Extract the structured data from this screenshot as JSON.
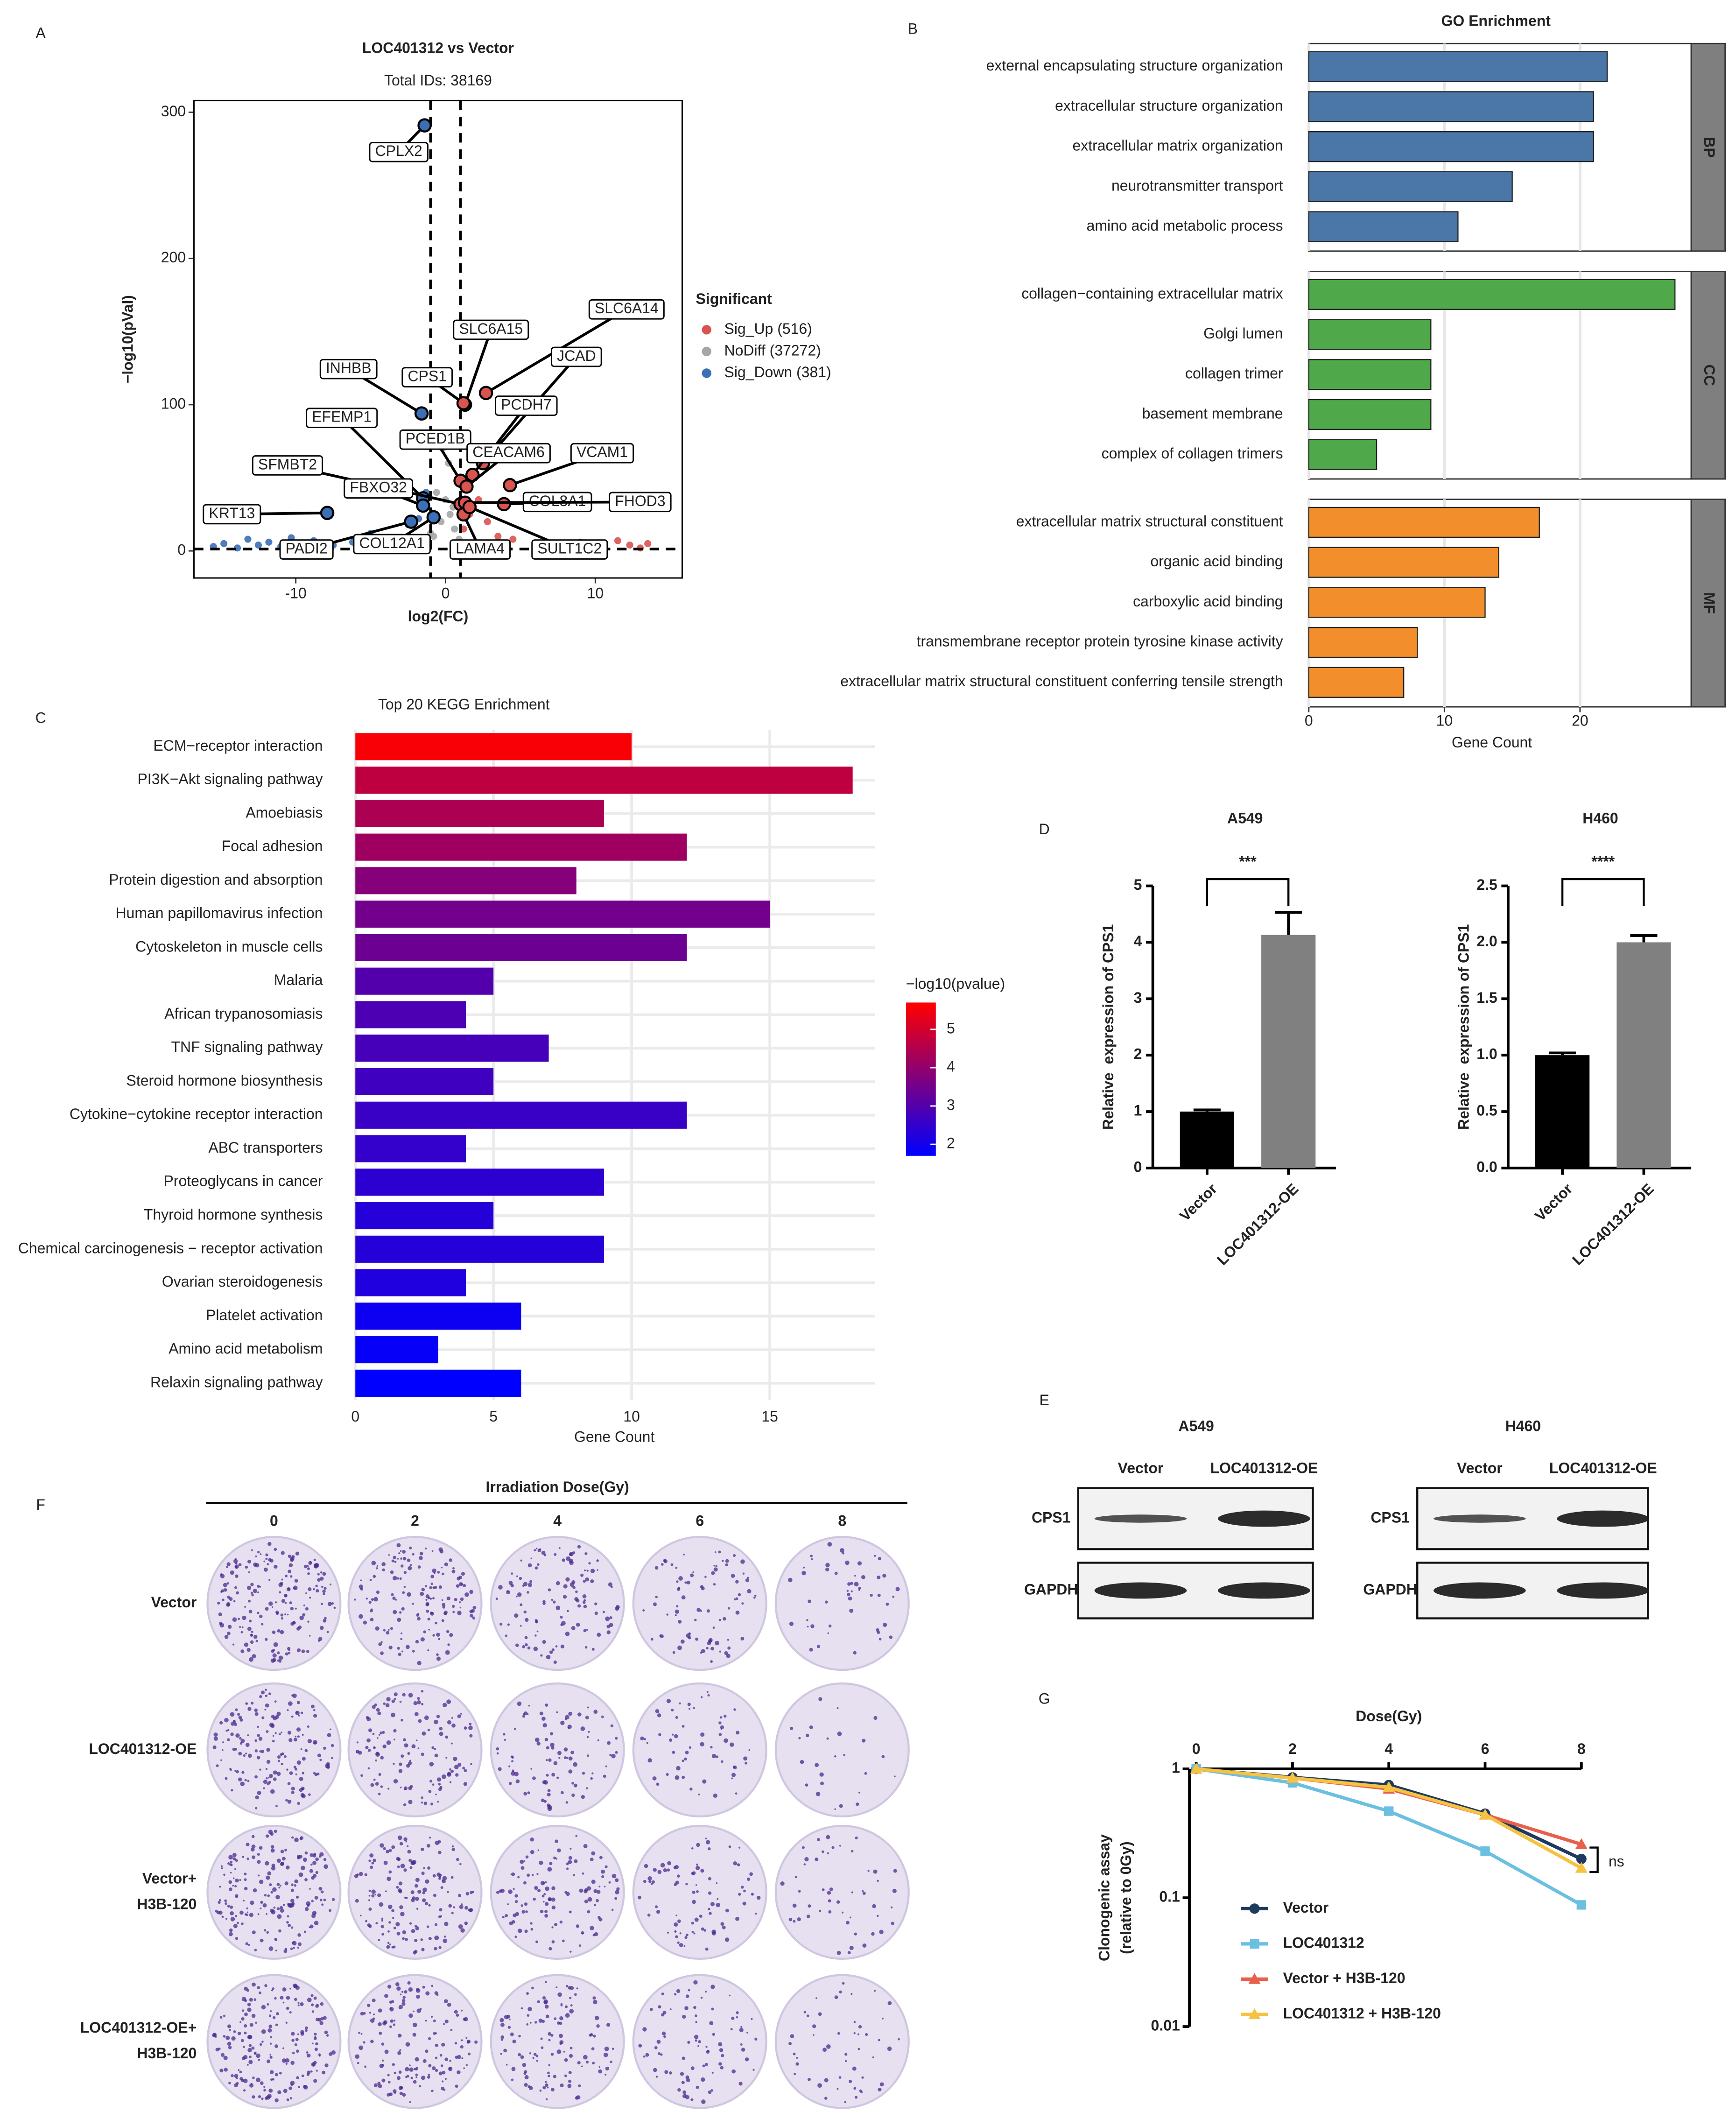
{
  "panel_labels": [
    "A",
    "B",
    "C",
    "D",
    "E",
    "F",
    "G"
  ],
  "chart_data": [
    {
      "type": "scatter",
      "title": "LOC401312 vs Vector",
      "subtitle": "Total IDs: 38169",
      "xlabel": "log2(FC)",
      "ylabel": "−log10(pVal)",
      "xlim": [
        -16.8,
        15.8
      ],
      "ylim": [
        -18.5,
        308
      ],
      "xticks": [
        -10,
        0,
        10
      ],
      "yticks": [
        0,
        100,
        200,
        300
      ],
      "legend_title": "Significant",
      "series": [
        {
          "name": "Sig_Up (516)",
          "color": "#d9534f",
          "x": [
            1.2,
            1.6,
            2.2,
            2.8,
            3.5,
            4.5,
            6,
            7.5,
            9,
            10.5,
            11.5,
            12.3,
            13,
            13.5
          ],
          "values": [
            15,
            25,
            35,
            20,
            10,
            8,
            5,
            4,
            6,
            3,
            7,
            4,
            2,
            5
          ]
        },
        {
          "name": "NoDiff (37272)",
          "color": "#a6a6a6",
          "x": [
            -3,
            -2,
            -1.5,
            -0.8,
            -0.3,
            0,
            0.3,
            0.6,
            0.9,
            -0.6,
            0.2,
            -0.2,
            0.5,
            -1
          ],
          "values": [
            1,
            2,
            4,
            10,
            20,
            35,
            25,
            15,
            8,
            40,
            60,
            70,
            30,
            12
          ]
        },
        {
          "name": "Sig_Down (381)",
          "color": "#3b6fb6",
          "x": [
            -15.5,
            -14.8,
            -13.9,
            -13.2,
            -12.5,
            -11.8,
            -11,
            -10.3,
            -9.5,
            -8.8,
            -7.5,
            -6.2,
            -5,
            -3.8,
            -2.5,
            -1.8,
            -1.3
          ],
          "values": [
            3,
            5,
            2,
            8,
            4,
            6,
            3,
            9,
            5,
            7,
            4,
            6,
            12,
            5,
            18,
            22,
            40
          ]
        }
      ],
      "vlines": [
        -1,
        1
      ],
      "hline": 1.3,
      "annotations": [
        {
          "gene": "CPLX2",
          "x": -1.4,
          "y": 291
        },
        {
          "gene": "SLC6A14",
          "x": 2.7,
          "y": 108
        },
        {
          "gene": "SLC6A15",
          "x": 1.3,
          "y": 100
        },
        {
          "gene": "INHBB",
          "x": -1.6,
          "y": 94
        },
        {
          "gene": "CPS1",
          "x": 1.2,
          "y": 101
        },
        {
          "gene": "JCAD",
          "x": 2.5,
          "y": 60
        },
        {
          "gene": "PCDH7",
          "x": 1.8,
          "y": 52
        },
        {
          "gene": "EFEMP1",
          "x": -1.5,
          "y": 36
        },
        {
          "gene": "PCED1B",
          "x": 1.0,
          "y": 48
        },
        {
          "gene": "CEACAM6",
          "x": 1.4,
          "y": 44
        },
        {
          "gene": "VCAM1",
          "x": 4.3,
          "y": 45
        },
        {
          "gene": "SFMBT2",
          "x": 1.0,
          "y": 32
        },
        {
          "gene": "FBXO32",
          "x": -1.5,
          "y": 31
        },
        {
          "gene": "COL8A1",
          "x": 3.9,
          "y": 32
        },
        {
          "gene": "FHOD3",
          "x": 1.3,
          "y": 33
        },
        {
          "gene": "KRT13",
          "x": -7.9,
          "y": 26
        },
        {
          "gene": "PADI2",
          "x": -2.3,
          "y": 20
        },
        {
          "gene": "COL12A1",
          "x": -0.8,
          "y": 23
        },
        {
          "gene": "LAMA4",
          "x": 1.2,
          "y": 25
        },
        {
          "gene": "SULT1C2",
          "x": 1.6,
          "y": 30
        }
      ]
    },
    {
      "type": "bar",
      "orientation": "horizontal",
      "title": "GO Enrichment",
      "xlabel": "Gene Count",
      "xlim": [
        0,
        28.2
      ],
      "xticks": [
        0,
        10,
        20
      ],
      "grid": true,
      "facets": [
        {
          "name": "BP",
          "color": "#4a76a8",
          "categories": [
            "external encapsulating structure organization",
            "extracellular structure organization",
            "extracellular matrix organization",
            "neurotransmitter transport",
            "amino acid metabolic process"
          ],
          "values": [
            22,
            21,
            21,
            15,
            11
          ]
        },
        {
          "name": "CC",
          "color": "#4fa84a",
          "categories": [
            "collagen−containing extracellular matrix",
            "Golgi lumen",
            "collagen trimer",
            "basement membrane",
            "complex of collagen trimers"
          ],
          "values": [
            27,
            9,
            9,
            9,
            5
          ]
        },
        {
          "name": "MF",
          "color": "#f28e2b",
          "categories": [
            "extracellular matrix structural constituent",
            "organic acid binding",
            "carboxylic acid binding",
            "transmembrane receptor protein tyrosine kinase activity",
            "extracellular matrix structural constituent conferring tensile strength"
          ],
          "values": [
            17,
            14,
            13,
            8,
            7
          ]
        }
      ]
    },
    {
      "type": "bar",
      "orientation": "horizontal",
      "title": "Top 20 KEGG Enrichment",
      "xlabel": "Gene Count",
      "xlim": [
        0,
        18.8
      ],
      "xticks": [
        0,
        5,
        10,
        15
      ],
      "grid": true,
      "categories": [
        "ECM−receptor interaction",
        "PI3K−Akt signaling pathway",
        "Amoebiasis",
        "Focal adhesion",
        "Protein digestion and absorption",
        "Human papillomavirus infection",
        "Cytoskeleton in muscle cells",
        "Malaria",
        "African trypanosomiasis",
        "TNF signaling pathway",
        "Steroid hormone biosynthesis",
        "Cytokine−cytokine receptor interaction",
        "ABC transporters",
        "Proteoglycans in cancer",
        "Thyroid hormone synthesis",
        "Chemical carcinogenesis − receptor activation",
        "Ovarian steroidogenesis",
        "Platelet activation",
        "Amino acid metabolism",
        "Relaxin signaling pathway"
      ],
      "values": [
        10,
        18,
        9,
        12,
        8,
        15,
        12,
        5,
        4,
        7,
        5,
        12,
        4,
        9,
        5,
        9,
        4,
        6,
        3,
        6
      ],
      "color_values": [
        5.6,
        4.7,
        4.4,
        4.2,
        3.8,
        3.5,
        3.4,
        3.0,
        2.9,
        2.8,
        2.7,
        2.6,
        2.5,
        2.4,
        2.3,
        2.3,
        2.2,
        1.9,
        1.8,
        1.7
      ],
      "colorbar_title": "−log10(pvalue)",
      "clim": [
        1.7,
        5.7
      ],
      "cticks": [
        2,
        3,
        4,
        5
      ],
      "colors": [
        "#0000ff",
        "#ff0000"
      ]
    },
    {
      "type": "bar",
      "title": "A549",
      "ylabel": "Relative  expression of CPS1",
      "categories": [
        "Vector",
        "LOC401312-OE"
      ],
      "values": [
        1.0,
        4.13
      ],
      "errors": [
        0.03,
        0.4
      ],
      "colors": [
        "#000000",
        "#808080"
      ],
      "ylim": [
        0,
        5
      ],
      "yticks": [
        0,
        1,
        2,
        3,
        4,
        5
      ],
      "significance": "***"
    },
    {
      "type": "bar",
      "title": "H460",
      "ylabel": "Relative  expression of CPS1",
      "categories": [
        "Vector",
        "LOC401312-OE"
      ],
      "values": [
        1.0,
        2.0
      ],
      "errors": [
        0.02,
        0.06
      ],
      "colors": [
        "#000000",
        "#808080"
      ],
      "ylim": [
        0,
        2.5
      ],
      "yticks": [
        {
          "value": 0,
          "label": "0.0"
        },
        0.5,
        {
          "value": 1,
          "label": "1.0"
        },
        1.5,
        {
          "value": 2,
          "label": "2.0"
        },
        2.5
      ],
      "significance": "****"
    },
    {
      "type": "line",
      "xlabel": "Dose(Gy)",
      "ylabel": [
        "Clonogenic assay",
        "(relative to 0Gy)"
      ],
      "x": [
        0,
        2,
        4,
        6,
        8
      ],
      "xlim": [
        0,
        8
      ],
      "xticks": [
        0,
        2,
        4,
        6,
        8
      ],
      "log_y": true,
      "ylim": [
        0.01,
        1
      ],
      "yticks": [
        0.01,
        0.1,
        1
      ],
      "series": [
        {
          "name": "Vector",
          "color": "#1f3a5f",
          "marker": "circle",
          "values": [
            1,
            0.86,
            0.75,
            0.45,
            0.2
          ]
        },
        {
          "name": "LOC401312",
          "color": "#6bbfe0",
          "marker": "square",
          "values": [
            1,
            0.78,
            0.47,
            0.23,
            0.088
          ]
        },
        {
          "name": "Vector + H3B-120",
          "color": "#e8604c",
          "marker": "triangle",
          "values": [
            1,
            0.85,
            0.7,
            0.44,
            0.26
          ]
        },
        {
          "name": "LOC401312 + H3B-120",
          "color": "#f5c242",
          "marker": "triangle",
          "values": [
            1,
            0.85,
            0.72,
            0.44,
            0.17
          ]
        }
      ],
      "annotation": "ns"
    }
  ],
  "western_blot": [
    {
      "cell": "A549",
      "lanes": [
        "Vector",
        "LOC401312-OE"
      ],
      "rows": [
        "CPS1",
        "GAPDH"
      ]
    },
    {
      "cell": "H460",
      "lanes": [
        "Vector",
        "LOC401312-OE"
      ],
      "rows": [
        "CPS1",
        "GAPDH"
      ]
    }
  ],
  "colony_assay": {
    "title": "Irradiation Dose(Gy)",
    "doses": [
      "0",
      "2",
      "4",
      "6",
      "8"
    ],
    "rows": [
      [
        "Vector"
      ],
      [
        "LOC401312-OE"
      ],
      [
        "Vector+",
        "H3B-120"
      ],
      [
        "LOC401312-OE+",
        "H3B-120"
      ]
    ]
  }
}
